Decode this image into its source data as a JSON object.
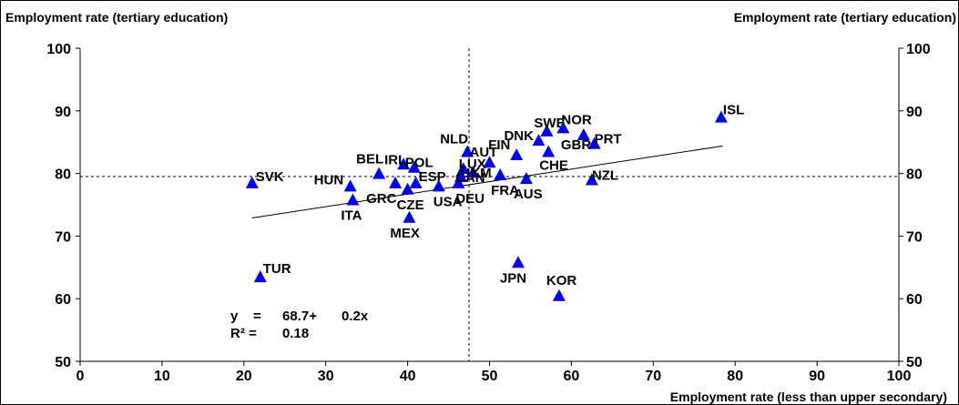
{
  "chart_data": {
    "type": "scatter",
    "y_label_left": "Employment rate (tertiary education)",
    "y_label_right": "Employment rate (tertiary education)",
    "x_label": "Employment rate (less than upper secondary)",
    "xlim": [
      0,
      100
    ],
    "ylim": [
      50,
      100
    ],
    "x_ticks": [
      0,
      10,
      20,
      30,
      40,
      50,
      60,
      70,
      80,
      90,
      100
    ],
    "y_ticks": [
      50,
      60,
      70,
      80,
      90,
      100
    ],
    "grid": false,
    "marker_color": "#0000ee",
    "reference_lines": {
      "x_mean": 47.5,
      "y_mean": 79.5
    },
    "trend_line": {
      "x_start": 21.0,
      "x_end": 78.5,
      "intercept": 68.7,
      "slope": 0.2
    },
    "regression_text": {
      "y_prefix": "y",
      "equals": "=",
      "intercept_text": "68.7+",
      "slope_text": "0.2x",
      "r2_prefix": "R² =",
      "r2_value": "0.18"
    },
    "points": [
      {
        "label": "SVK",
        "x": 21.0,
        "y": 78.5
      },
      {
        "label": "TUR",
        "x": 22.0,
        "y": 63.5
      },
      {
        "label": "HUN",
        "x": 33.0,
        "y": 78.0
      },
      {
        "label": "ITA",
        "x": 33.3,
        "y": 75.8
      },
      {
        "label": "BEL",
        "x": 36.5,
        "y": 80.0
      },
      {
        "label": "GRC",
        "x": 38.5,
        "y": 78.5
      },
      {
        "label": "IRL",
        "x": 39.5,
        "y": 81.5
      },
      {
        "label": "CZE",
        "x": 40.0,
        "y": 77.5
      },
      {
        "label": "MEX",
        "x": 40.2,
        "y": 73.0
      },
      {
        "label": "POL",
        "x": 40.8,
        "y": 81.0
      },
      {
        "label": "ESP",
        "x": 41.0,
        "y": 78.5
      },
      {
        "label": "USA",
        "x": 43.8,
        "y": 78.0
      },
      {
        "label": "DEU",
        "x": 46.2,
        "y": 78.5
      },
      {
        "label": "CAN",
        "x": 46.5,
        "y": 79.5
      },
      {
        "label": "LUX",
        "x": 46.8,
        "y": 80.8
      },
      {
        "label": "NLD",
        "x": 47.3,
        "y": 83.5
      },
      {
        "label": "UKM",
        "x": 48.0,
        "y": 80.2
      },
      {
        "label": "AUT",
        "x": 50.0,
        "y": 81.8
      },
      {
        "label": "FRA",
        "x": 51.3,
        "y": 79.8
      },
      {
        "label": "FIN",
        "x": 53.3,
        "y": 83.0
      },
      {
        "label": "JPN",
        "x": 53.5,
        "y": 65.8
      },
      {
        "label": "AUS",
        "x": 54.5,
        "y": 79.2
      },
      {
        "label": "DNK",
        "x": 56.0,
        "y": 85.3
      },
      {
        "label": "SWE",
        "x": 57.0,
        "y": 86.8
      },
      {
        "label": "CHE",
        "x": 57.2,
        "y": 83.5
      },
      {
        "label": "KOR",
        "x": 58.5,
        "y": 60.5
      },
      {
        "label": "NOR",
        "x": 59.0,
        "y": 87.3
      },
      {
        "label": "GBR",
        "x": 61.5,
        "y": 86.2
      },
      {
        "label": "PRT",
        "x": 62.8,
        "y": 84.8
      },
      {
        "label": "NZL",
        "x": 62.5,
        "y": 79.0
      },
      {
        "label": "ISL",
        "x": 78.3,
        "y": 89.0
      }
    ]
  }
}
